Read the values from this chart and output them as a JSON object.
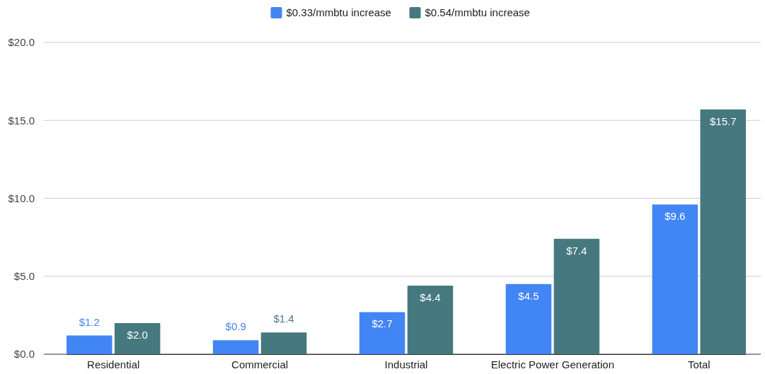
{
  "chart_data": {
    "type": "bar",
    "categories": [
      "Residential",
      "Commercial",
      "Industrial",
      "Electric Power Generation",
      "Total"
    ],
    "series": [
      {
        "name": "$0.33/mmbtu increase",
        "color": "#4285f4",
        "values": [
          1.2,
          0.9,
          2.7,
          4.5,
          9.6
        ],
        "value_labels": [
          "$1.2",
          "$0.9",
          "$2.7",
          "$4.5",
          "$9.6"
        ]
      },
      {
        "name": "$0.54/mmbtu increase",
        "color": "#46787f",
        "values": [
          2.0,
          1.4,
          4.4,
          7.4,
          15.7
        ],
        "value_labels": [
          "$2.0",
          "$1.4",
          "$4.4",
          "$7.4",
          "$15.7"
        ]
      }
    ],
    "ylim": [
      0,
      20
    ],
    "yticks": [
      {
        "value": 0,
        "label": "$0.0"
      },
      {
        "value": 5,
        "label": "$5.0"
      },
      {
        "value": 10,
        "label": "$10.0"
      },
      {
        "value": 15,
        "label": "$15.0"
      },
      {
        "value": 20,
        "label": "$20.0"
      }
    ],
    "grid": "y",
    "legend": "top"
  }
}
